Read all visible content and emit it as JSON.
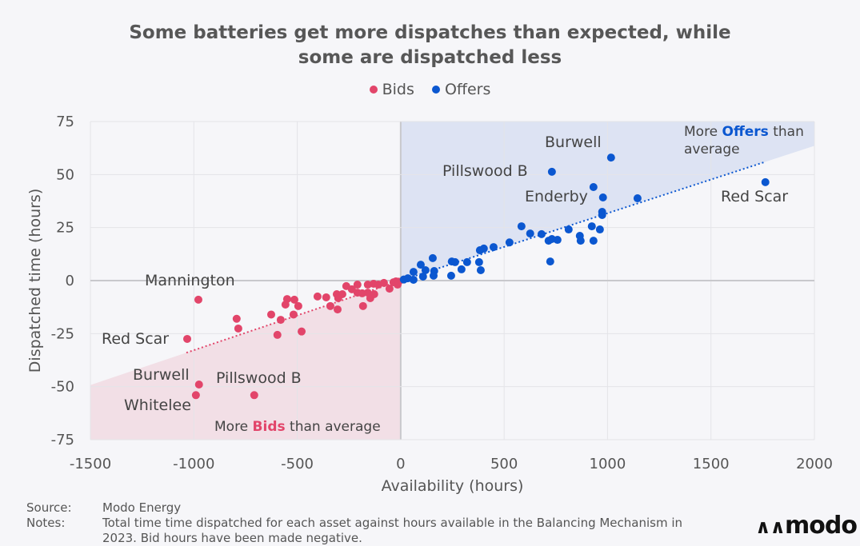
{
  "title_lines": [
    "Some batteries get more dispatches than expected, while",
    "some are dispatched less"
  ],
  "colors": {
    "bids": "#e2456a",
    "offers": "#0b57d0",
    "bids_region": "#f2dfe6",
    "offers_region": "#dde3f3"
  },
  "chart_data": {
    "type": "scatter",
    "title": "Some batteries get more dispatches than expected, while some are dispatched less",
    "xlabel": "Availability (hours)",
    "ylabel": "Dispatched time (hours)",
    "xlim": [
      -1500,
      2000
    ],
    "ylim": [
      -75,
      75
    ],
    "xticks": [
      -1500,
      -1000,
      -500,
      0,
      500,
      1000,
      1500,
      2000
    ],
    "yticks": [
      -75,
      -50,
      -25,
      0,
      25,
      50,
      75
    ],
    "grid": true,
    "legend": "top-center",
    "series": [
      {
        "name": "Bids",
        "color": "#e2456a",
        "trend": [
          [
            -1036,
            -34
          ],
          [
            0,
            0
          ]
        ],
        "points": [
          [
            -978,
            -9
          ],
          [
            -1032,
            -27.5
          ],
          [
            -975,
            -49
          ],
          [
            -990,
            -54
          ],
          [
            -708,
            -54
          ],
          [
            -793,
            -18
          ],
          [
            -785,
            -22.6
          ],
          [
            -626,
            -16
          ],
          [
            -580,
            -18.5
          ],
          [
            -596,
            -25.6
          ],
          [
            -549,
            -8.7
          ],
          [
            -557,
            -11.3
          ],
          [
            -514,
            -9
          ],
          [
            -495,
            -12
          ],
          [
            -518,
            -16
          ],
          [
            -479,
            -24
          ],
          [
            -402,
            -7.5
          ],
          [
            -360,
            -7.9
          ],
          [
            -340,
            -12
          ],
          [
            -305,
            -13.6
          ],
          [
            -309,
            -6.4
          ],
          [
            -282,
            -6.4
          ],
          [
            -302,
            -8.3
          ],
          [
            -263,
            -2.6
          ],
          [
            -236,
            -4.1
          ],
          [
            -209,
            -1.9
          ],
          [
            -209,
            -5.7
          ],
          [
            -182,
            -12
          ],
          [
            -186,
            -6
          ],
          [
            -159,
            -5.7
          ],
          [
            -147,
            -8.3
          ],
          [
            -128,
            -6.4
          ],
          [
            -159,
            -1.9
          ],
          [
            -131,
            -1.5
          ],
          [
            -108,
            -1.9
          ],
          [
            -81,
            -1.1
          ],
          [
            -54,
            -3.8
          ],
          [
            -35,
            -0.8
          ],
          [
            -23,
            -0.4
          ],
          [
            -15,
            -1.9
          ],
          [
            -10,
            -0.5
          ]
        ]
      },
      {
        "name": "Offers",
        "color": "#0b57d0",
        "trend": [
          [
            0,
            0
          ],
          [
            1763,
            56
          ]
        ],
        "points": [
          [
            15,
            0.5
          ],
          [
            35,
            1.1
          ],
          [
            62,
            0.4
          ],
          [
            62,
            4.1
          ],
          [
            97,
            7.5
          ],
          [
            108,
            1.9
          ],
          [
            120,
            4.9
          ],
          [
            155,
            10.6
          ],
          [
            162,
            4.5
          ],
          [
            159,
            2.3
          ],
          [
            244,
            2.3
          ],
          [
            247,
            9
          ],
          [
            263,
            8.7
          ],
          [
            294,
            5.3
          ],
          [
            321,
            8.7
          ],
          [
            379,
            8.7
          ],
          [
            387,
            4.9
          ],
          [
            383,
            14.3
          ],
          [
            402,
            15.1
          ],
          [
            449,
            15.8
          ],
          [
            526,
            18
          ],
          [
            584,
            25.6
          ],
          [
            626,
            22.2
          ],
          [
            681,
            21.9
          ],
          [
            715,
            18.8
          ],
          [
            731,
            19.6
          ],
          [
            758,
            19.2
          ],
          [
            723,
            9
          ],
          [
            812,
            24.1
          ],
          [
            866,
            21.1
          ],
          [
            870,
            18.8
          ],
          [
            924,
            25.6
          ],
          [
            963,
            24.1
          ],
          [
            932,
            18.8
          ],
          [
            974,
            32.4
          ],
          [
            974,
            30.9
          ],
          [
            978,
            39.2
          ],
          [
            1017,
            58
          ],
          [
            731,
            51.3
          ],
          [
            932,
            44.1
          ],
          [
            1763,
            46.4
          ],
          [
            1145,
            38.8
          ]
        ]
      }
    ],
    "annotations": {
      "bids": [
        "Mannington",
        "Red Scar",
        "Burwell",
        "Pillswood B",
        "Whitelee"
      ],
      "offers": [
        "Burwell",
        "Pillswood B",
        "Enderby",
        "Red Scar"
      ],
      "bids_region": {
        "pre": "More ",
        "bold": "Bids",
        "post": " than average"
      },
      "offers_region": {
        "pre": "More ",
        "bold": "Offers",
        "post": " than",
        "line2": "average"
      }
    }
  },
  "footer": {
    "source_label": "Source:",
    "source": "Modo Energy",
    "notes_label": "Notes:",
    "notes_1": "Total time time dispatched for each asset against hours available in the Balancing Mechanism in",
    "notes_2": "2023. Bid hours have been made negative.",
    "logo": "modo"
  }
}
